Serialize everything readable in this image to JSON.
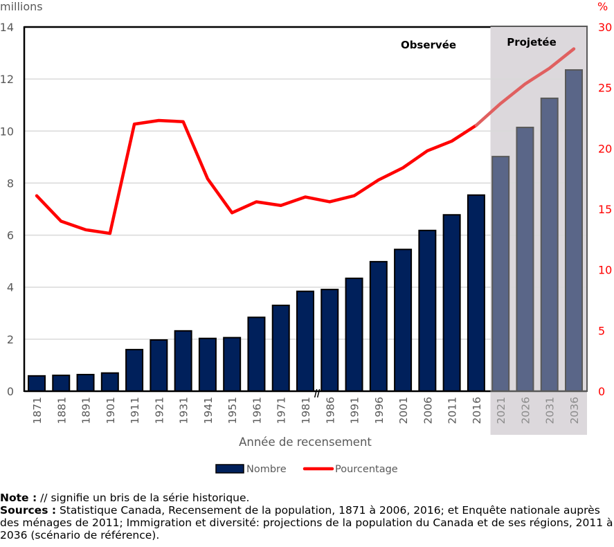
{
  "chart_data": {
    "type": "bar",
    "combo": "bar+line",
    "xlabel": "Année de recensement",
    "ylabel_left": "millions",
    "ylabel_right": "%",
    "ylim_left": [
      0,
      14
    ],
    "yticks_left": [
      0,
      2,
      4,
      6,
      8,
      10,
      12,
      14
    ],
    "ylim_right": [
      0,
      30
    ],
    "yticks_right": [
      0,
      5,
      10,
      15,
      20,
      25,
      30
    ],
    "grid": true,
    "legend_placement": "bottom-center",
    "categories": [
      "1871",
      "1881",
      "1891",
      "1901",
      "1911",
      "1921",
      "1931",
      "1941",
      "1951",
      "1961",
      "1971",
      "1981",
      "1986",
      "1991",
      "1996",
      "2001",
      "2006",
      "2011",
      "2016",
      "2021",
      "2026",
      "2031",
      "2036"
    ],
    "projected_from": "2021",
    "break_after": "1981",
    "region_labels": {
      "observed": "Observée",
      "projected": "Projetée"
    },
    "series": [
      {
        "name": "Nombre",
        "type": "bar",
        "axis": "left",
        "color": "#00205b",
        "projected_color": "#5a6688",
        "values": [
          0.59,
          0.61,
          0.64,
          0.7,
          1.6,
          1.97,
          2.32,
          2.03,
          2.06,
          2.84,
          3.3,
          3.84,
          3.91,
          4.34,
          4.98,
          5.45,
          6.18,
          6.78,
          7.54,
          9.02,
          10.14,
          11.26,
          12.35
        ]
      },
      {
        "name": "Pourcentage",
        "type": "line",
        "axis": "right",
        "color": "#ff0000",
        "projected_color": "#e06060",
        "values": [
          16.1,
          14.0,
          13.3,
          13.0,
          22.0,
          22.3,
          22.2,
          17.5,
          14.7,
          15.6,
          15.3,
          16.0,
          15.6,
          16.1,
          17.4,
          18.4,
          19.8,
          20.6,
          21.9,
          23.7,
          25.3,
          26.6,
          28.2
        ]
      }
    ],
    "colors": {
      "projected_background": "#dcd8dc",
      "grid": "#d9d9d9",
      "axis_text": "#595959",
      "right_axis_text": "#ff0000",
      "projected_tick_text": "#8c8c8c"
    }
  },
  "notes": {
    "note_label": "Note :",
    "note_text": " // signifie un bris de la série historique.",
    "sources_label": "Sources :",
    "sources_text": " Statistique Canada, Recensement de la population, 1871 à 2006, 2016; et Enquête nationale auprès des ménages de 2011; Immigration et diversité: projections de la population du Canada et de ses régions, 2011 à 2036 (scénario de référence)."
  }
}
